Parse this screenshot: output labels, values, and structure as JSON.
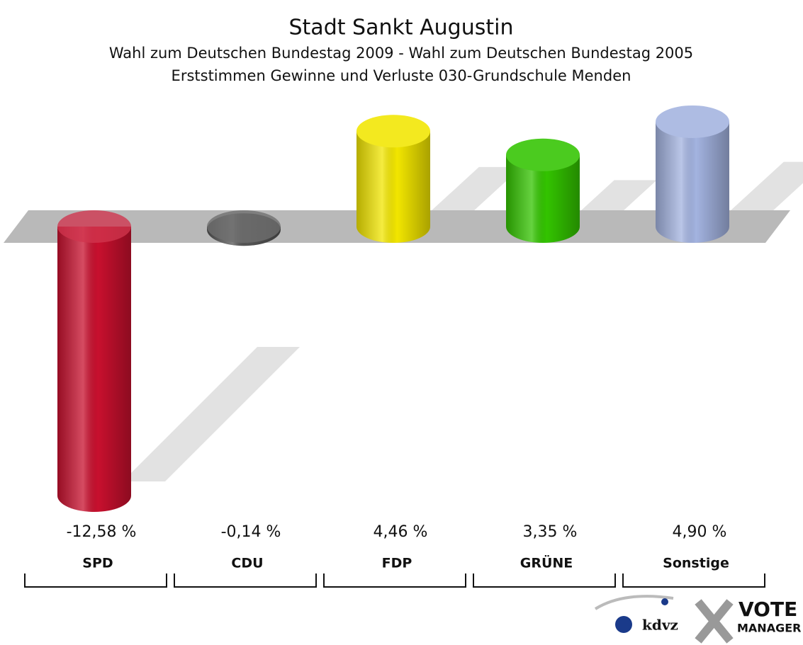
{
  "chart_data": {
    "type": "bar",
    "title": "Stadt Sankt Augustin",
    "subtitle": [
      "Wahl zum Deutschen Bundestag 2009 - Wahl zum Deutschen Bundestag 2005",
      "Erststimmen Gewinne und Verluste 030-Grundschule Menden"
    ],
    "categories": [
      "SPD",
      "CDU",
      "FDP",
      "GRÜNE",
      "Sonstige"
    ],
    "values": [
      -12.58,
      -0.14,
      4.46,
      3.35,
      4.9
    ],
    "value_labels": [
      "-12,58 %",
      "-0,14 %",
      "4,46 %",
      "3,35 %",
      "4,90 %"
    ],
    "colors": [
      "#c8102e",
      "#555555",
      "#f2e600",
      "#33c400",
      "#a3b3e0"
    ],
    "logo": [
      "kdvz",
      "VOTE",
      "MANAGER"
    ]
  }
}
